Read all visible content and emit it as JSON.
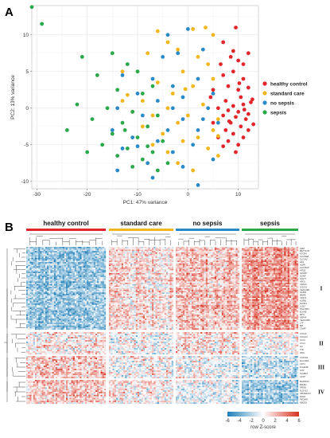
{
  "panels": {
    "a": "A",
    "b": "B"
  },
  "chart_data": [
    {
      "type": "scatter",
      "xlabel": "PC1: 47% variance",
      "ylabel": "PC2: 13% variance",
      "xlim": [
        -31,
        14
      ],
      "ylim": [
        -11,
        14
      ],
      "xticks": [
        -30,
        -20,
        -10,
        0,
        10
      ],
      "yticks": [
        -10,
        -5,
        0,
        5,
        10
      ],
      "grid": true,
      "legend_position": "right",
      "series": [
        {
          "name": "healthy control",
          "color": "#e3262c",
          "points": [
            [
              9.5,
              11
            ],
            [
              7,
              9
            ],
            [
              12,
              7.5
            ],
            [
              8.5,
              7
            ],
            [
              10,
              6.5
            ],
            [
              11,
              6
            ],
            [
              6.5,
              6
            ],
            [
              9,
              5
            ],
            [
              7,
              4.5
            ],
            [
              11,
              4
            ],
            [
              8,
              3
            ],
            [
              5,
              2.5
            ],
            [
              12,
              2.8
            ],
            [
              10,
              2.5
            ],
            [
              4.5,
              1.5
            ],
            [
              10.5,
              1.5
            ],
            [
              7.5,
              1
            ],
            [
              12.5,
              0.8
            ],
            [
              11,
              0.5
            ],
            [
              9,
              0.3
            ],
            [
              6,
              0
            ],
            [
              8,
              -0.3
            ],
            [
              10,
              -0.5
            ],
            [
              12,
              -0.8
            ],
            [
              7,
              -1
            ],
            [
              9.5,
              -1.2
            ],
            [
              11.5,
              -1.5
            ],
            [
              5,
              -2
            ],
            [
              8.5,
              -2
            ],
            [
              10.5,
              -2.5
            ],
            [
              7.5,
              -3
            ],
            [
              12,
              -3
            ],
            [
              9,
              -3.5
            ],
            [
              6,
              -4
            ],
            [
              11,
              -4
            ],
            [
              8,
              -4.5
            ],
            [
              10,
              -5
            ],
            [
              7,
              -5.2
            ],
            [
              9.5,
              -6
            ],
            [
              13,
              -2.2
            ],
            [
              12.8,
              1.2
            ],
            [
              11.2,
              -0.2
            ],
            [
              10.2,
              3.4
            ],
            [
              9,
              7.8
            ],
            [
              8.2,
              -1.8
            ]
          ]
        },
        {
          "name": "standard care",
          "color": "#f2b71f",
          "points": [
            [
              -6,
              10.5
            ],
            [
              -4,
              9
            ],
            [
              1,
              10.8
            ],
            [
              3.5,
              11
            ],
            [
              5,
              10
            ],
            [
              -2,
              8
            ],
            [
              -8,
              7.5
            ],
            [
              2,
              7
            ],
            [
              4,
              6
            ],
            [
              -13,
              5
            ],
            [
              -1,
              5
            ],
            [
              5,
              4
            ],
            [
              -6,
              3.5
            ],
            [
              1,
              3
            ],
            [
              -3,
              2
            ],
            [
              -12,
              1.8
            ],
            [
              -9,
              1
            ],
            [
              3,
              0.5
            ],
            [
              -4,
              0
            ],
            [
              -11,
              -0.5
            ],
            [
              -7,
              -1
            ],
            [
              0,
              -1
            ],
            [
              6,
              -1.5
            ],
            [
              -2,
              -2
            ],
            [
              -9,
              -2.5
            ],
            [
              5,
              -3
            ],
            [
              -5,
              -3.5
            ],
            [
              2,
              -4
            ],
            [
              -1,
              -4.5
            ],
            [
              -7,
              -5
            ],
            [
              4,
              -5.5
            ],
            [
              -4,
              -6
            ],
            [
              6,
              -6.5
            ],
            [
              -2,
              -7.5
            ],
            [
              1,
              -8.5
            ],
            [
              -13,
              1
            ],
            [
              6,
              -3.8
            ],
            [
              -0.5,
              2.6
            ]
          ]
        },
        {
          "name": "no sepsis",
          "color": "#2a8ac8",
          "points": [
            [
              0,
              10.8
            ],
            [
              -4,
              10
            ],
            [
              -2,
              7.5
            ],
            [
              3,
              8
            ],
            [
              -13,
              4.5
            ],
            [
              -7,
              4
            ],
            [
              2,
              4
            ],
            [
              -3,
              3
            ],
            [
              -10,
              2
            ],
            [
              5,
              2
            ],
            [
              -1,
              1.5
            ],
            [
              -6,
              1
            ],
            [
              -14,
              0
            ],
            [
              -3,
              0
            ],
            [
              4,
              0
            ],
            [
              -9,
              -1
            ],
            [
              -1,
              -1.5
            ],
            [
              6,
              -2
            ],
            [
              -15,
              -3
            ],
            [
              -4,
              -3
            ],
            [
              2,
              -3
            ],
            [
              -11,
              -4
            ],
            [
              -6,
              -4.5
            ],
            [
              1,
              -5
            ],
            [
              -13,
              -5.5
            ],
            [
              -3,
              -6
            ],
            [
              5,
              -7
            ],
            [
              -8,
              -7.5
            ],
            [
              -1,
              -8
            ],
            [
              -14,
              -8.5
            ],
            [
              2,
              -10.5
            ],
            [
              -7,
              -9.5
            ],
            [
              -10,
              -5.2
            ],
            [
              3,
              -1.5
            ],
            [
              -5,
              7
            ]
          ]
        },
        {
          "name": "sepsis",
          "color": "#2aa84a",
          "points": [
            [
              -31,
              13.8
            ],
            [
              -29,
              11.5
            ],
            [
              -21,
              7
            ],
            [
              -15,
              7.5
            ],
            [
              -12,
              6
            ],
            [
              -10,
              5
            ],
            [
              -18,
              4.5
            ],
            [
              -7,
              3
            ],
            [
              -14,
              2.5
            ],
            [
              -9,
              2
            ],
            [
              -22,
              0.5
            ],
            [
              -16,
              0
            ],
            [
              -11,
              -0.5
            ],
            [
              -6,
              -1
            ],
            [
              -19,
              -1.5
            ],
            [
              -13,
              -2
            ],
            [
              -8,
              -2.5
            ],
            [
              -24,
              -3
            ],
            [
              -15,
              -3.5
            ],
            [
              -10,
              -4
            ],
            [
              -5,
              -4.5
            ],
            [
              -17,
              -5
            ],
            [
              -12,
              -5.5
            ],
            [
              -7,
              -6
            ],
            [
              -14,
              -6.5
            ],
            [
              -9,
              -7
            ],
            [
              -4,
              -7.5
            ],
            [
              -11,
              -8
            ],
            [
              -6,
              -8.5
            ],
            [
              -12.5,
              -3
            ],
            [
              -20,
              -6
            ],
            [
              -8,
              -5.2
            ]
          ]
        }
      ]
    },
    {
      "type": "heatmap",
      "groups": [
        "healthy control",
        "standard care",
        "no sepsis",
        "sepsis"
      ],
      "group_colors": [
        "#e3262c",
        "#f2b71f",
        "#2a8ac8",
        "#2aa84a"
      ],
      "clusters": [
        "I",
        "II",
        "III",
        "IV"
      ],
      "gene_labels": {
        "I": [
          "ADM",
          "MET70-26",
          "NTCRA",
          "SLC39A8",
          "SLC3A2",
          "HK3",
          "AQP9",
          "ALOX5AP",
          "KIF1B",
          "IL1RAP",
          "S100P",
          "CD177",
          "ARG1",
          "ANXA3",
          "SOCS3",
          "CEACAM1",
          "IL18R1",
          "MMP8",
          "CD274",
          "KLRB1",
          "OLFM4",
          "LCN2",
          "PGLYRP1",
          "ELANE",
          "MPO",
          "DEFA4",
          "CEACAM8",
          "LTF",
          "BPI",
          "CAMP"
        ],
        "II": [
          "CXCL8",
          "CXCL10",
          "CCL3",
          "CCL4",
          "IL6",
          "TNF",
          "IFNG"
        ],
        "III": [
          "CX3CR1",
          "HLA-DRA",
          "CD74",
          "FCGR3B",
          "IL7R",
          "SLAMF7",
          "CCR7"
        ],
        "IV": [
          "MAP3K14",
          "BAHD1",
          "NFKB1",
          "ALOX15",
          "ARHGEF12",
          "RARA",
          "PIK3AP1",
          "NEDD9"
        ]
      },
      "colorbar": {
        "title": "row Z-score",
        "ticks": [
          -6,
          -4,
          -2,
          0,
          2,
          4,
          6
        ],
        "colors": [
          "#1f7fb8",
          "#ffffff",
          "#d7301f"
        ]
      }
    }
  ]
}
